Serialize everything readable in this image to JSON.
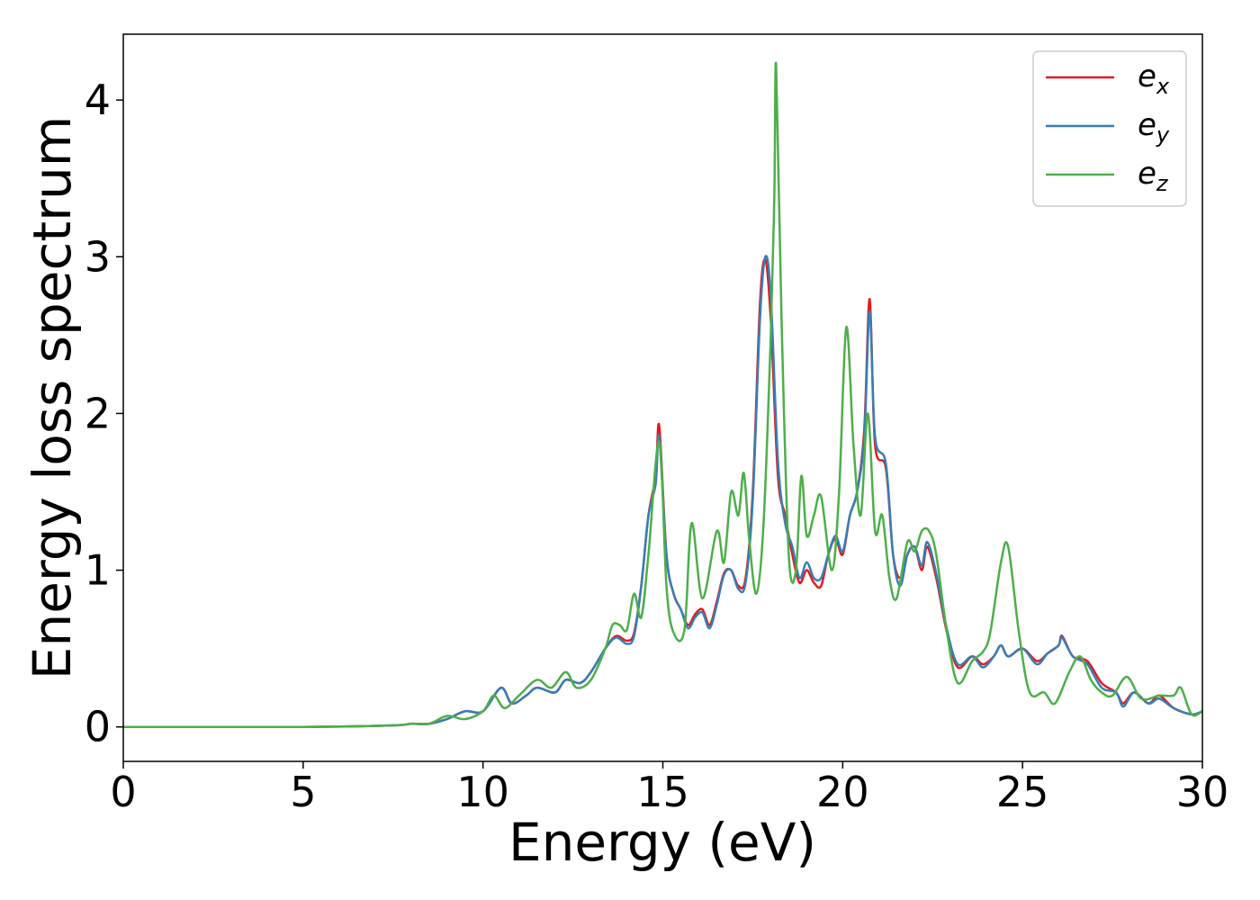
{
  "chart_data": {
    "type": "line",
    "title": "",
    "xlabel": "Energy (eV)",
    "ylabel": "Energy loss spectrum",
    "xlim": [
      0,
      30
    ],
    "ylim": [
      -0.22,
      4.42
    ],
    "xticks": [
      0,
      5,
      10,
      15,
      20,
      25,
      30
    ],
    "xtick_labels": [
      "0",
      "5",
      "10",
      "15",
      "20",
      "25",
      "30"
    ],
    "yticks": [
      0,
      1,
      2,
      3,
      4
    ],
    "ytick_labels": [
      "0",
      "1",
      "2",
      "3",
      "4"
    ],
    "grid": false,
    "legend_position": "top-right",
    "series": [
      {
        "name": "e_x",
        "legend_base": "e",
        "legend_sub": "x",
        "color": "#e41a1c",
        "points": [
          [
            0,
            0
          ],
          [
            5,
            0
          ],
          [
            7.5,
            0.01
          ],
          [
            8,
            0.02
          ],
          [
            8.5,
            0.02
          ],
          [
            9,
            0.05
          ],
          [
            9.5,
            0.1
          ],
          [
            10,
            0.1
          ],
          [
            10.5,
            0.25
          ],
          [
            10.8,
            0.15
          ],
          [
            11.2,
            0.2
          ],
          [
            11.5,
            0.25
          ],
          [
            12,
            0.22
          ],
          [
            12.3,
            0.3
          ],
          [
            12.7,
            0.28
          ],
          [
            13,
            0.35
          ],
          [
            13.4,
            0.5
          ],
          [
            13.7,
            0.58
          ],
          [
            14,
            0.55
          ],
          [
            14.2,
            0.6
          ],
          [
            14.4,
            0.9
          ],
          [
            14.6,
            1.35
          ],
          [
            14.8,
            1.6
          ],
          [
            14.9,
            1.92
          ],
          [
            15.1,
            1.1
          ],
          [
            15.3,
            0.85
          ],
          [
            15.5,
            0.75
          ],
          [
            15.7,
            0.65
          ],
          [
            15.9,
            0.72
          ],
          [
            16.1,
            0.75
          ],
          [
            16.3,
            0.65
          ],
          [
            16.5,
            0.8
          ],
          [
            16.7,
            0.98
          ],
          [
            16.9,
            1.0
          ],
          [
            17.1,
            0.9
          ],
          [
            17.3,
            0.95
          ],
          [
            17.5,
            1.5
          ],
          [
            17.7,
            2.7
          ],
          [
            17.85,
            2.98
          ],
          [
            18,
            2.6
          ],
          [
            18.2,
            1.6
          ],
          [
            18.4,
            1.35
          ],
          [
            18.6,
            1.1
          ],
          [
            18.8,
            0.92
          ],
          [
            19,
            1.0
          ],
          [
            19.2,
            0.92
          ],
          [
            19.4,
            0.9
          ],
          [
            19.6,
            1.1
          ],
          [
            19.8,
            1.2
          ],
          [
            20,
            1.1
          ],
          [
            20.2,
            1.35
          ],
          [
            20.4,
            1.5
          ],
          [
            20.6,
            1.9
          ],
          [
            20.75,
            2.73
          ],
          [
            20.9,
            1.8
          ],
          [
            21.2,
            1.65
          ],
          [
            21.4,
            1.1
          ],
          [
            21.6,
            0.95
          ],
          [
            21.8,
            1.1
          ],
          [
            22,
            1.15
          ],
          [
            22.2,
            1.0
          ],
          [
            22.35,
            1.15
          ],
          [
            22.6,
            0.95
          ],
          [
            22.9,
            0.6
          ],
          [
            23.2,
            0.38
          ],
          [
            23.6,
            0.45
          ],
          [
            23.9,
            0.4
          ],
          [
            24.2,
            0.45
          ],
          [
            24.4,
            0.52
          ],
          [
            24.6,
            0.45
          ],
          [
            25,
            0.5
          ],
          [
            25.4,
            0.42
          ],
          [
            25.7,
            0.47
          ],
          [
            26,
            0.52
          ],
          [
            26.1,
            0.58
          ],
          [
            26.4,
            0.45
          ],
          [
            26.8,
            0.42
          ],
          [
            27.2,
            0.28
          ],
          [
            27.6,
            0.22
          ],
          [
            27.8,
            0.15
          ],
          [
            28.1,
            0.22
          ],
          [
            28.5,
            0.15
          ],
          [
            28.8,
            0.2
          ],
          [
            29.2,
            0.12
          ],
          [
            29.7,
            0.08
          ],
          [
            30,
            0.1
          ]
        ]
      },
      {
        "name": "e_y",
        "legend_base": "e",
        "legend_sub": "y",
        "color": "#377eb8",
        "points": [
          [
            0,
            0
          ],
          [
            5,
            0
          ],
          [
            7.5,
            0.01
          ],
          [
            8,
            0.02
          ],
          [
            8.5,
            0.02
          ],
          [
            9,
            0.05
          ],
          [
            9.5,
            0.1
          ],
          [
            10,
            0.1
          ],
          [
            10.5,
            0.25
          ],
          [
            10.8,
            0.15
          ],
          [
            11.2,
            0.2
          ],
          [
            11.5,
            0.25
          ],
          [
            12,
            0.22
          ],
          [
            12.3,
            0.3
          ],
          [
            12.7,
            0.28
          ],
          [
            13,
            0.35
          ],
          [
            13.4,
            0.5
          ],
          [
            13.7,
            0.57
          ],
          [
            14,
            0.53
          ],
          [
            14.2,
            0.58
          ],
          [
            14.4,
            0.9
          ],
          [
            14.6,
            1.35
          ],
          [
            14.8,
            1.55
          ],
          [
            14.9,
            1.85
          ],
          [
            15.1,
            1.1
          ],
          [
            15.3,
            0.85
          ],
          [
            15.5,
            0.75
          ],
          [
            15.7,
            0.63
          ],
          [
            15.9,
            0.7
          ],
          [
            16.1,
            0.73
          ],
          [
            16.3,
            0.63
          ],
          [
            16.5,
            0.78
          ],
          [
            16.7,
            0.97
          ],
          [
            16.9,
            1.0
          ],
          [
            17.1,
            0.88
          ],
          [
            17.3,
            0.92
          ],
          [
            17.5,
            1.45
          ],
          [
            17.7,
            2.6
          ],
          [
            17.85,
            3.0
          ],
          [
            18,
            2.75
          ],
          [
            18.2,
            1.7
          ],
          [
            18.4,
            1.3
          ],
          [
            18.6,
            1.15
          ],
          [
            18.8,
            0.95
          ],
          [
            19,
            1.05
          ],
          [
            19.2,
            0.95
          ],
          [
            19.4,
            0.95
          ],
          [
            19.6,
            1.1
          ],
          [
            19.8,
            1.22
          ],
          [
            20,
            1.12
          ],
          [
            20.2,
            1.35
          ],
          [
            20.4,
            1.5
          ],
          [
            20.6,
            1.85
          ],
          [
            20.75,
            2.65
          ],
          [
            20.9,
            1.85
          ],
          [
            21.2,
            1.68
          ],
          [
            21.4,
            1.1
          ],
          [
            21.6,
            0.9
          ],
          [
            21.8,
            1.1
          ],
          [
            22,
            1.15
          ],
          [
            22.2,
            1.03
          ],
          [
            22.35,
            1.18
          ],
          [
            22.6,
            0.98
          ],
          [
            22.9,
            0.62
          ],
          [
            23.2,
            0.4
          ],
          [
            23.6,
            0.45
          ],
          [
            23.9,
            0.38
          ],
          [
            24.2,
            0.45
          ],
          [
            24.4,
            0.52
          ],
          [
            24.6,
            0.45
          ],
          [
            25,
            0.5
          ],
          [
            25.4,
            0.4
          ],
          [
            25.7,
            0.47
          ],
          [
            26,
            0.52
          ],
          [
            26.1,
            0.57
          ],
          [
            26.4,
            0.45
          ],
          [
            26.8,
            0.4
          ],
          [
            27.2,
            0.25
          ],
          [
            27.6,
            0.22
          ],
          [
            27.8,
            0.13
          ],
          [
            28.1,
            0.22
          ],
          [
            28.5,
            0.15
          ],
          [
            28.8,
            0.18
          ],
          [
            29.2,
            0.12
          ],
          [
            29.7,
            0.08
          ],
          [
            30,
            0.1
          ]
        ]
      },
      {
        "name": "e_z",
        "legend_base": "e",
        "legend_sub": "z",
        "color": "#4daf4a",
        "points": [
          [
            0,
            0
          ],
          [
            5,
            0
          ],
          [
            7.5,
            0.01
          ],
          [
            8,
            0.02
          ],
          [
            8.5,
            0.02
          ],
          [
            9,
            0.07
          ],
          [
            9.5,
            0.05
          ],
          [
            10,
            0.1
          ],
          [
            10.3,
            0.2
          ],
          [
            10.6,
            0.12
          ],
          [
            11,
            0.2
          ],
          [
            11.5,
            0.3
          ],
          [
            11.9,
            0.25
          ],
          [
            12.3,
            0.35
          ],
          [
            12.6,
            0.25
          ],
          [
            13,
            0.3
          ],
          [
            13.4,
            0.5
          ],
          [
            13.6,
            0.65
          ],
          [
            13.8,
            0.65
          ],
          [
            14,
            0.62
          ],
          [
            14.2,
            0.85
          ],
          [
            14.4,
            0.7
          ],
          [
            14.6,
            1.1
          ],
          [
            14.9,
            1.82
          ],
          [
            15.1,
            0.9
          ],
          [
            15.3,
            0.6
          ],
          [
            15.6,
            0.62
          ],
          [
            15.8,
            1.3
          ],
          [
            16.1,
            0.82
          ],
          [
            16.5,
            1.25
          ],
          [
            16.7,
            1.05
          ],
          [
            16.9,
            1.5
          ],
          [
            17.1,
            1.35
          ],
          [
            17.25,
            1.62
          ],
          [
            17.4,
            1.2
          ],
          [
            17.6,
            0.85
          ],
          [
            17.8,
            1.3
          ],
          [
            18,
            2.5
          ],
          [
            18.1,
            3.4
          ],
          [
            18.15,
            4.22
          ],
          [
            18.3,
            2.6
          ],
          [
            18.5,
            1.1
          ],
          [
            18.7,
            1.0
          ],
          [
            18.85,
            1.6
          ],
          [
            19,
            1.22
          ],
          [
            19.2,
            1.35
          ],
          [
            19.4,
            1.47
          ],
          [
            19.7,
            1.0
          ],
          [
            19.9,
            1.5
          ],
          [
            20.1,
            2.55
          ],
          [
            20.3,
            1.8
          ],
          [
            20.5,
            1.35
          ],
          [
            20.7,
            2.0
          ],
          [
            20.9,
            1.25
          ],
          [
            21.1,
            1.35
          ],
          [
            21.3,
            0.95
          ],
          [
            21.5,
            0.82
          ],
          [
            21.8,
            1.18
          ],
          [
            22,
            1.12
          ],
          [
            22.2,
            1.25
          ],
          [
            22.4,
            1.25
          ],
          [
            22.6,
            1.1
          ],
          [
            22.9,
            0.6
          ],
          [
            23.2,
            0.28
          ],
          [
            23.6,
            0.42
          ],
          [
            23.9,
            0.48
          ],
          [
            24.1,
            0.6
          ],
          [
            24.4,
            1.05
          ],
          [
            24.6,
            1.15
          ],
          [
            24.9,
            0.6
          ],
          [
            25.2,
            0.22
          ],
          [
            25.6,
            0.22
          ],
          [
            25.9,
            0.15
          ],
          [
            26.3,
            0.35
          ],
          [
            26.6,
            0.45
          ],
          [
            26.9,
            0.3
          ],
          [
            27.2,
            0.22
          ],
          [
            27.5,
            0.2
          ],
          [
            27.9,
            0.32
          ],
          [
            28.3,
            0.18
          ],
          [
            28.8,
            0.2
          ],
          [
            29.2,
            0.2
          ],
          [
            29.4,
            0.25
          ],
          [
            29.7,
            0.08
          ],
          [
            30,
            0.1
          ]
        ]
      }
    ]
  }
}
